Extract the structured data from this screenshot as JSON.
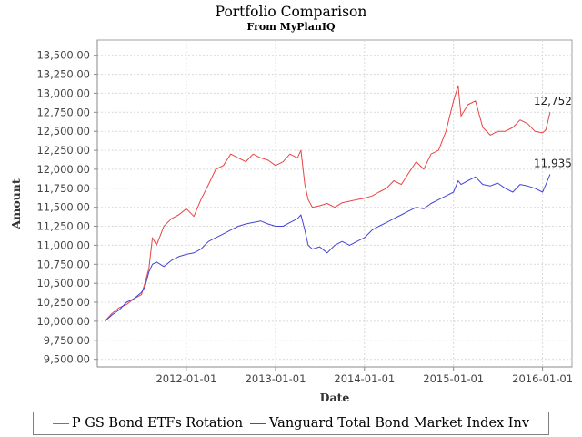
{
  "chart_data": {
    "type": "line",
    "title": "Portfolio Comparison",
    "subtitle": "From MyPlanIQ",
    "xlabel": "Date",
    "ylabel": "Amount",
    "x_ticks": [
      "2012-01-01",
      "2013-01-01",
      "2014-01-01",
      "2015-01-01",
      "2016-01-01"
    ],
    "y_ticks": [
      "9,500.00",
      "9,750.00",
      "10,000.00",
      "10,250.00",
      "10,500.00",
      "10,750.00",
      "11,000.00",
      "11,250.00",
      "11,500.00",
      "11,750.00",
      "12,000.00",
      "12,250.00",
      "12,500.00",
      "12,750.00",
      "13,000.00",
      "13,250.00",
      "13,500.00"
    ],
    "y_tick_values": [
      9500,
      9750,
      10000,
      10250,
      10500,
      10750,
      11000,
      11250,
      11500,
      11750,
      12000,
      12250,
      12500,
      12750,
      13000,
      13250,
      13500
    ],
    "xlim": [
      "2011-01-01",
      "2016-05-01"
    ],
    "ylim": [
      9400,
      13700
    ],
    "grid": true,
    "legend_position": "bottom",
    "series": [
      {
        "name": "P GS Bond ETFs Rotation",
        "color": "#e84444",
        "end_label": "12,752",
        "x": [
          "2011-02-01",
          "2011-03-01",
          "2011-04-01",
          "2011-05-01",
          "2011-06-01",
          "2011-07-01",
          "2011-07-15",
          "2011-08-01",
          "2011-08-15",
          "2011-09-01",
          "2011-10-01",
          "2011-11-01",
          "2011-12-01",
          "2012-01-01",
          "2012-02-01",
          "2012-03-01",
          "2012-04-01",
          "2012-05-01",
          "2012-06-01",
          "2012-07-01",
          "2012-08-01",
          "2012-09-01",
          "2012-10-01",
          "2012-11-01",
          "2012-12-01",
          "2013-01-01",
          "2013-02-01",
          "2013-03-01",
          "2013-04-01",
          "2013-04-15",
          "2013-05-01",
          "2013-05-15",
          "2013-06-01",
          "2013-07-01",
          "2013-08-01",
          "2013-09-01",
          "2013-10-01",
          "2013-11-01",
          "2013-12-01",
          "2014-01-01",
          "2014-02-01",
          "2014-03-01",
          "2014-04-01",
          "2014-05-01",
          "2014-06-01",
          "2014-07-01",
          "2014-08-01",
          "2014-09-01",
          "2014-10-01",
          "2014-11-01",
          "2014-12-01",
          "2015-01-01",
          "2015-01-20",
          "2015-02-01",
          "2015-03-01",
          "2015-04-01",
          "2015-05-01",
          "2015-06-01",
          "2015-07-01",
          "2015-08-01",
          "2015-09-01",
          "2015-10-01",
          "2015-11-01",
          "2015-12-01",
          "2016-01-01",
          "2016-01-15",
          "2016-02-01"
        ],
        "y": [
          10000,
          10100,
          10180,
          10220,
          10300,
          10350,
          10500,
          10700,
          11100,
          11000,
          11250,
          11350,
          11400,
          11480,
          11380,
          11600,
          11800,
          12000,
          12050,
          12200,
          12150,
          12100,
          12200,
          12150,
          12120,
          12050,
          12100,
          12200,
          12150,
          12250,
          11800,
          11600,
          11500,
          11520,
          11550,
          11500,
          11560,
          11580,
          11600,
          11620,
          11650,
          11700,
          11750,
          11850,
          11800,
          11950,
          12100,
          12000,
          12200,
          12250,
          12500,
          12900,
          13100,
          12700,
          12850,
          12900,
          12550,
          12450,
          12500,
          12500,
          12550,
          12650,
          12600,
          12500,
          12480,
          12520,
          12752
        ]
      },
      {
        "name": "Vanguard Total Bond Market Index Inv",
        "color": "#4444d8",
        "end_label": "11,935",
        "x": [
          "2011-02-01",
          "2011-03-01",
          "2011-04-01",
          "2011-05-01",
          "2011-06-01",
          "2011-07-01",
          "2011-07-15",
          "2011-08-01",
          "2011-08-15",
          "2011-09-01",
          "2011-10-01",
          "2011-11-01",
          "2011-12-01",
          "2012-01-01",
          "2012-02-01",
          "2012-03-01",
          "2012-04-01",
          "2012-05-01",
          "2012-06-01",
          "2012-07-01",
          "2012-08-01",
          "2012-09-01",
          "2012-10-01",
          "2012-11-01",
          "2012-12-01",
          "2013-01-01",
          "2013-02-01",
          "2013-03-01",
          "2013-04-01",
          "2013-04-15",
          "2013-05-01",
          "2013-05-15",
          "2013-06-01",
          "2013-07-01",
          "2013-08-01",
          "2013-09-01",
          "2013-10-01",
          "2013-11-01",
          "2013-12-01",
          "2014-01-01",
          "2014-02-01",
          "2014-03-01",
          "2014-04-01",
          "2014-05-01",
          "2014-06-01",
          "2014-07-01",
          "2014-08-01",
          "2014-09-01",
          "2014-10-01",
          "2014-11-01",
          "2014-12-01",
          "2015-01-01",
          "2015-01-20",
          "2015-02-01",
          "2015-03-01",
          "2015-04-01",
          "2015-05-01",
          "2015-06-01",
          "2015-07-01",
          "2015-08-01",
          "2015-09-01",
          "2015-10-01",
          "2015-11-01",
          "2015-12-01",
          "2016-01-01",
          "2016-01-15",
          "2016-02-01"
        ],
        "y": [
          10000,
          10080,
          10150,
          10250,
          10300,
          10380,
          10450,
          10650,
          10750,
          10780,
          10720,
          10800,
          10850,
          10880,
          10900,
          10950,
          11050,
          11100,
          11150,
          11200,
          11250,
          11280,
          11300,
          11320,
          11280,
          11250,
          11250,
          11300,
          11350,
          11400,
          11200,
          11000,
          10950,
          10980,
          10900,
          11000,
          11050,
          11000,
          11050,
          11100,
          11200,
          11250,
          11300,
          11350,
          11400,
          11450,
          11500,
          11480,
          11550,
          11600,
          11650,
          11700,
          11850,
          11800,
          11850,
          11900,
          11800,
          11780,
          11820,
          11750,
          11700,
          11800,
          11780,
          11750,
          11700,
          11800,
          11935
        ]
      }
    ]
  }
}
